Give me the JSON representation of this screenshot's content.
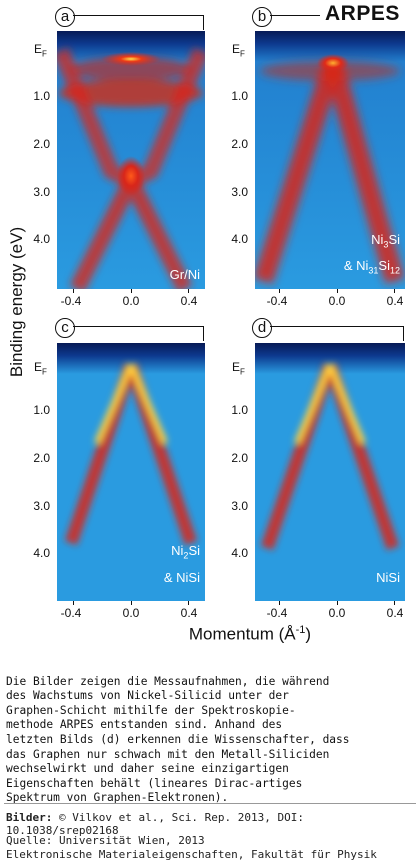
{
  "header": {
    "title": "ARPES"
  },
  "panels": [
    {
      "label": "a",
      "annotation_main": "Gr/Ni",
      "annotation_sub": ""
    },
    {
      "label": "b",
      "annotation_main": "Ni",
      "annotation_main_sub": "3",
      "annotation_main_after": "Si",
      "annotation_line2_pre": "& Ni",
      "annotation_line2_sub1": "31",
      "annotation_line2_mid": "Si",
      "annotation_line2_sub2": "12"
    },
    {
      "label": "c",
      "annotation_line1_pre": "Ni",
      "annotation_line1_sub": "2",
      "annotation_line1_post": "Si",
      "annotation_line2": "& NiSi"
    },
    {
      "label": "d",
      "annotation_main": "NiSi"
    }
  ],
  "axes": {
    "y_label": "Binding energy (eV)",
    "x_label_pre": "Momentum (Å",
    "x_label_sup": "-1",
    "x_label_post": ")",
    "ef_label": "E",
    "ef_sub": "F",
    "y_ticks": [
      "1.0",
      "2.0",
      "3.0",
      "4.0"
    ],
    "x_ticks": [
      "-0.4",
      "0.0",
      "0.4"
    ]
  },
  "caption": {
    "lines": [
      "Die Bilder zeigen die Messaufnahmen, die während",
      "des Wachstums von Nickel-Silicid unter der",
      "Graphen-Schicht mithilfe der Spektroskopie-",
      "methode ARPES entstanden sind. Anhand des",
      "letzten Bilds (d) erkennen die Wissenschafter, dass",
      "das Graphen nur schwach mit den Metall-Siliciden",
      "wechselwirkt und daher seine einzigartigen",
      "Eigenschaften behält (lineares Dirac-artiges",
      "Spektrum von Graphen-Elektronen)."
    ]
  },
  "credits": {
    "images_label": "Bilder:",
    "images_text": "© Vilkov et al., Sci. Rep. 2013, DOI: 10.1038/srep02168",
    "source_label": "Quelle:",
    "source_text": "Universität Wien, 2013",
    "dept_text": "Elektronische Materialeigenschaften, Fakultät für Physik"
  },
  "colors": {
    "bg_blue": "#2a9be0",
    "dark_blue": "#0a2a6e",
    "band_red": "#d8261a",
    "band_yellow": "#ffe24a"
  }
}
